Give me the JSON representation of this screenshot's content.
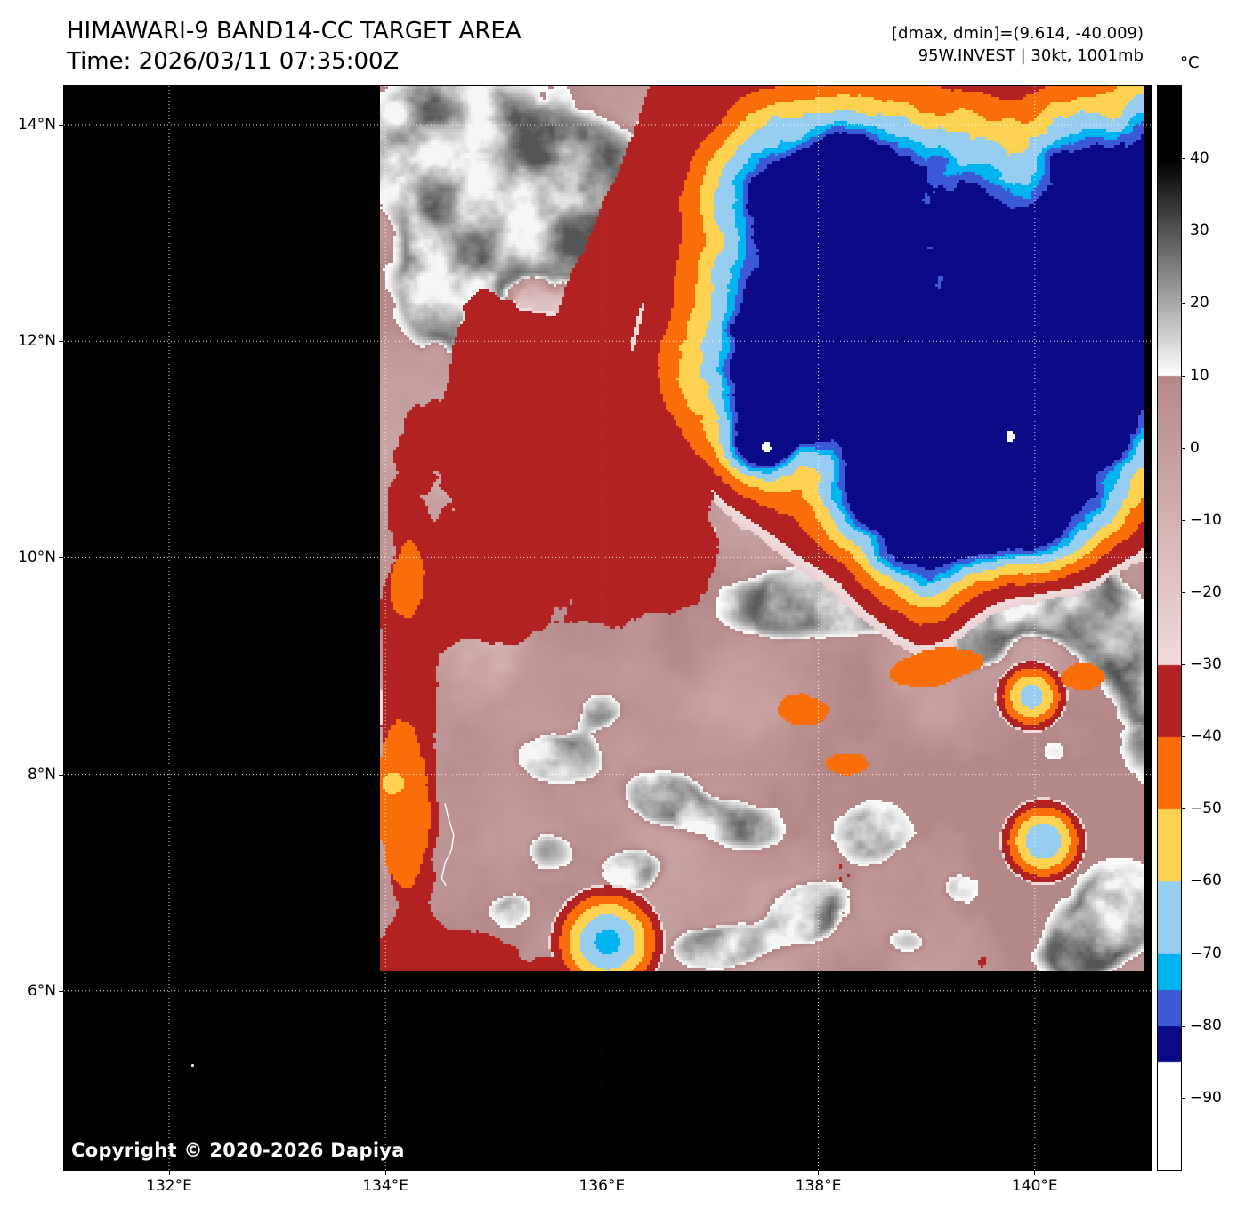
{
  "header": {
    "title": "HIMAWARI-9 BAND14-CC TARGET AREA",
    "time": "Time: 2026/03/11 07:35:00Z",
    "annotation_line1": "[dmax, dmin]=(9.614, -40.009)",
    "annotation_line2": "95W.INVEST | 30kt, 1001mb"
  },
  "copyright": "Copyright © 2020-2026 Dapiya",
  "plot": {
    "background": "#000000",
    "grid_color": "#ffffff"
  },
  "axes": {
    "x_ticks": [
      {
        "label": "132°E",
        "lon": 132
      },
      {
        "label": "134°E",
        "lon": 134
      },
      {
        "label": "136°E",
        "lon": 136
      },
      {
        "label": "138°E",
        "lon": 138
      },
      {
        "label": "140°E",
        "lon": 140
      }
    ],
    "y_ticks": [
      {
        "label": "14°N",
        "lat": 14
      },
      {
        "label": "12°N",
        "lat": 12
      },
      {
        "label": "10°N",
        "lat": 10
      },
      {
        "label": "8°N",
        "lat": 8
      },
      {
        "label": "6°N",
        "lat": 6
      }
    ]
  },
  "colorbar": {
    "unit": "°C",
    "vmax": 50,
    "vmin": -100,
    "ticks": [
      {
        "label": "40",
        "value": 40
      },
      {
        "label": "30",
        "value": 30
      },
      {
        "label": "20",
        "value": 20
      },
      {
        "label": "10",
        "value": 10
      },
      {
        "label": "0",
        "value": 0
      },
      {
        "label": "−10",
        "value": -10
      },
      {
        "label": "−20",
        "value": -20
      },
      {
        "label": "−30",
        "value": -30
      },
      {
        "label": "−40",
        "value": -40
      },
      {
        "label": "−50",
        "value": -50
      },
      {
        "label": "−60",
        "value": -60
      },
      {
        "label": "−70",
        "value": -70
      },
      {
        "label": "−80",
        "value": -80
      },
      {
        "label": "−90",
        "value": -90
      }
    ],
    "stops": [
      {
        "from": 50,
        "to": 40,
        "c1": "#000000",
        "c2": "#000000"
      },
      {
        "from": 40,
        "to": 10,
        "c1": "#000000",
        "c2": "#ffffff"
      },
      {
        "from": 10,
        "to": -30,
        "c1": "#b58888",
        "c2": "#f2dcdc"
      },
      {
        "from": -30,
        "to": -40,
        "c1": "#b22222",
        "c2": "#b22222"
      },
      {
        "from": -40,
        "to": -50,
        "c1": "#fa6e0a",
        "c2": "#fa6e0a"
      },
      {
        "from": -50,
        "to": -60,
        "c1": "#fcd250",
        "c2": "#fcd250"
      },
      {
        "from": -60,
        "to": -70,
        "c1": "#96cdf0",
        "c2": "#96cdf0"
      },
      {
        "from": -70,
        "to": -75,
        "c1": "#00b4f0",
        "c2": "#00b4f0"
      },
      {
        "from": -75,
        "to": -80,
        "c1": "#3c5ad7",
        "c2": "#3c5ad7"
      },
      {
        "from": -80,
        "to": -85,
        "c1": "#0a0a87",
        "c2": "#0a0a87"
      },
      {
        "from": -85,
        "to": -100,
        "c1": "#ffffff",
        "c2": "#ffffff"
      }
    ]
  }
}
